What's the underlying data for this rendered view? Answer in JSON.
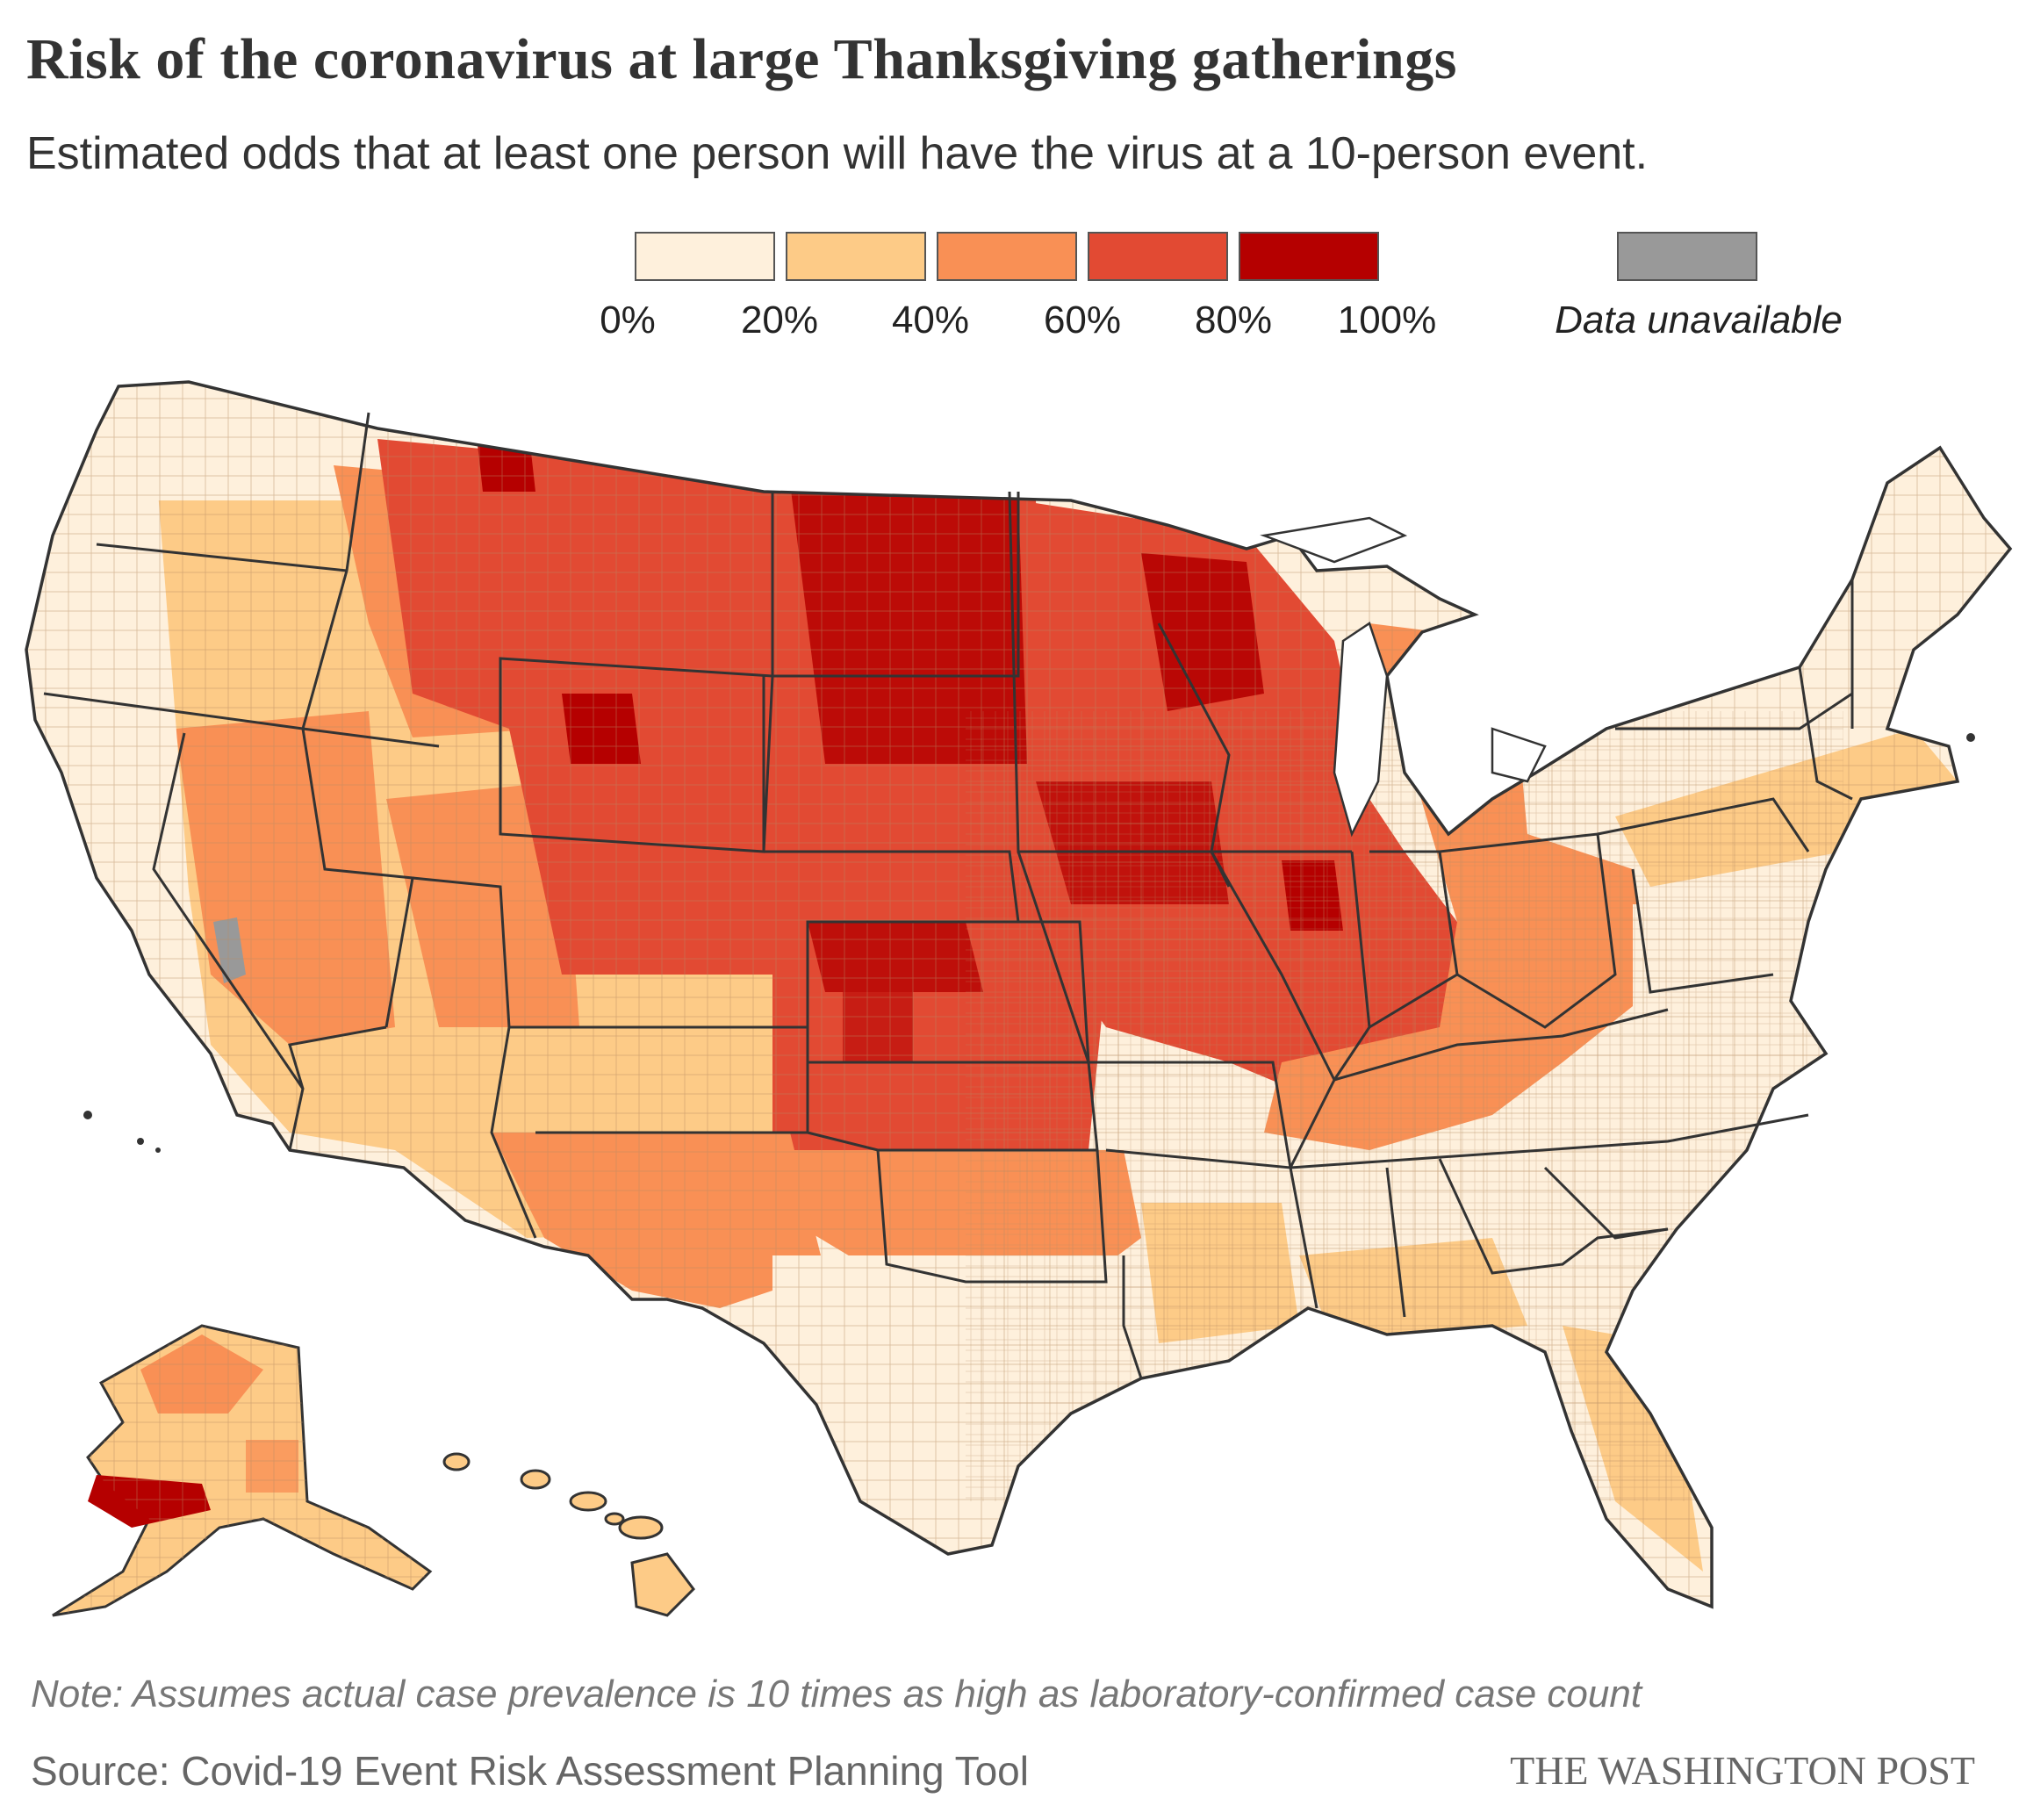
{
  "header": {
    "title": "Risk of the coronavirus at large Thanksgiving gatherings",
    "subtitle": "Estimated odds that at least one person will have the virus at a 10-person event."
  },
  "legend": {
    "bins": [
      {
        "from": 0,
        "to": 20,
        "color": "#fef0dc"
      },
      {
        "from": 20,
        "to": 40,
        "color": "#fdcb87"
      },
      {
        "from": 40,
        "to": 60,
        "color": "#f99055"
      },
      {
        "from": 60,
        "to": 80,
        "color": "#e24a33"
      },
      {
        "from": 80,
        "to": 100,
        "color": "#b50000"
      }
    ],
    "ticks": [
      "0%",
      "20%",
      "40%",
      "60%",
      "80%",
      "100%"
    ],
    "unavailable": {
      "label": "Data unavailable",
      "color": "#999999"
    }
  },
  "map": {
    "region": "United States",
    "regions_highlighted": "Upper Midwest and Great Plains (North Dakota, South Dakota, Wisconsin, Iowa, Montana, Wyoming) at 60–100%; West Coast, Northeast, Southeast mostly 0–20%",
    "colors": {
      "stroke": "#333333",
      "county_line": "#b58a60"
    }
  },
  "footer": {
    "note": "Note: Assumes actual case prevalence is 10 times as high as laboratory-confirmed case count",
    "source": "Source: Covid-19 Event Risk Assessment Planning Tool",
    "credit": "THE WASHINGTON POST"
  }
}
